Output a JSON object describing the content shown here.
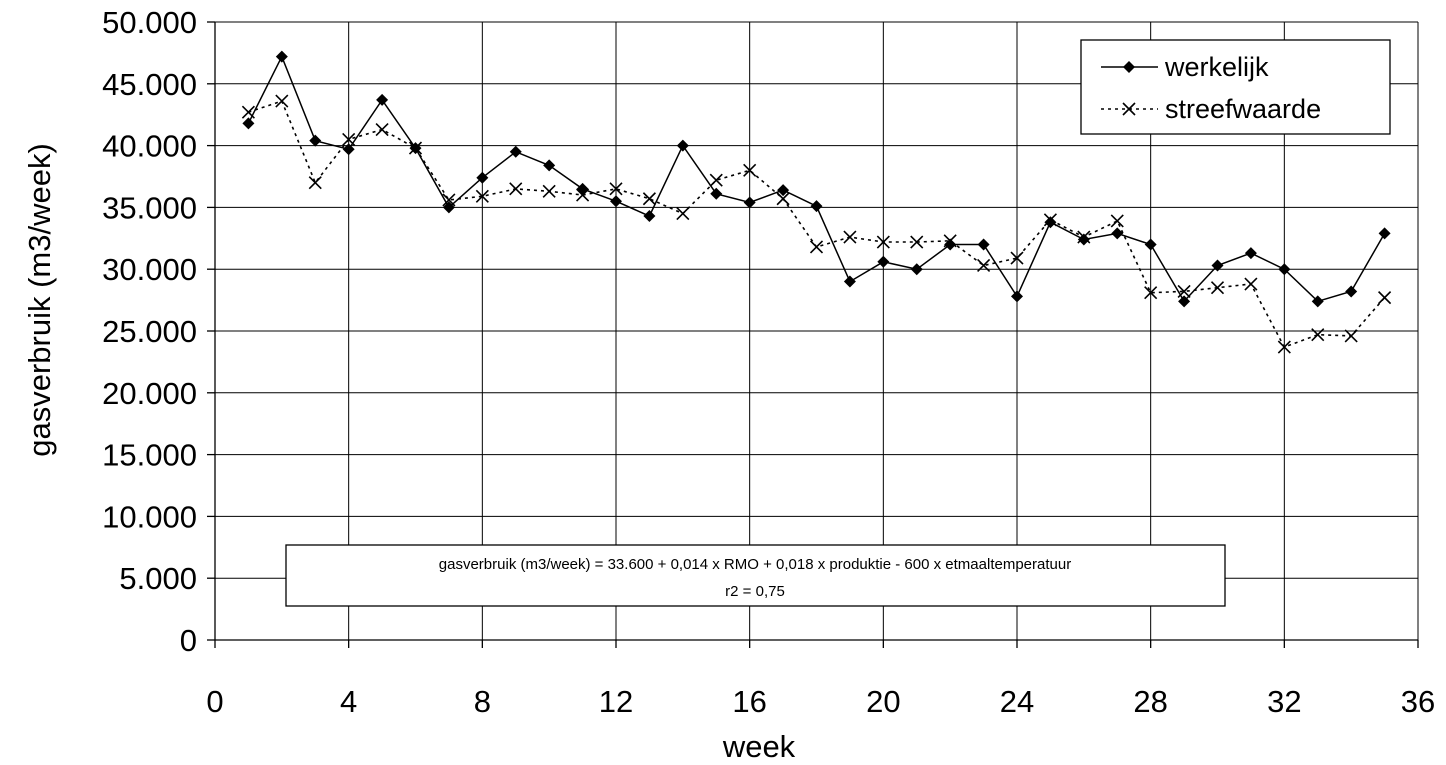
{
  "chart_data": {
    "type": "line",
    "title": "",
    "xlabel": "week",
    "ylabel": "gasverbruik (m3/week)",
    "xlim": [
      0,
      36
    ],
    "ylim": [
      0,
      50000
    ],
    "x_ticks": [
      0,
      4,
      8,
      12,
      16,
      20,
      24,
      28,
      32,
      36
    ],
    "x_tick_labels": [
      "0",
      "4",
      "8",
      "12",
      "16",
      "20",
      "24",
      "28",
      "32",
      "36"
    ],
    "y_ticks": [
      0,
      5000,
      10000,
      15000,
      20000,
      25000,
      30000,
      35000,
      40000,
      45000,
      50000
    ],
    "y_tick_labels": [
      "0",
      "5.000",
      "10.000",
      "15.000",
      "20.000",
      "25.000",
      "30.000",
      "35.000",
      "40.000",
      "45.000",
      "50.000"
    ],
    "grid": true,
    "legend_position": "top-right",
    "x": [
      1,
      2,
      3,
      4,
      5,
      6,
      7,
      8,
      9,
      10,
      11,
      12,
      13,
      14,
      15,
      16,
      17,
      18,
      19,
      20,
      21,
      22,
      23,
      24,
      25,
      26,
      27,
      28,
      29,
      30,
      31,
      32,
      33,
      34,
      35
    ],
    "series": [
      {
        "name": "werkelijk",
        "color": "#000000",
        "line_style": "solid",
        "marker": "diamond",
        "values": [
          41800,
          47200,
          40400,
          39700,
          43700,
          39800,
          35000,
          37400,
          39500,
          38400,
          36500,
          35500,
          34300,
          40000,
          36100,
          35400,
          36400,
          35100,
          29000,
          30600,
          30000,
          32000,
          32000,
          27800,
          33800,
          32400,
          32900,
          32000,
          27400,
          30300,
          31300,
          30000,
          27400,
          28200,
          32900
        ]
      },
      {
        "name": "streefwaarde",
        "color": "#000000",
        "line_style": "dotted",
        "marker": "x",
        "values": [
          42700,
          43600,
          37000,
          40500,
          41300,
          39800,
          35600,
          35900,
          36500,
          36300,
          36000,
          36500,
          35700,
          34500,
          37200,
          38000,
          35700,
          31800,
          32600,
          32200,
          32200,
          32300,
          30300,
          30900,
          34000,
          32600,
          33900,
          28100,
          28200,
          28500,
          28800,
          23700,
          24700,
          24600,
          27700
        ]
      }
    ],
    "annotation": {
      "line1": "gasverbruik (m3/week) = 33.600 + 0,014 x RMO + 0,018 x produktie  - 600 x etmaaltemperatuur",
      "line2": "r2 = 0,75"
    }
  }
}
